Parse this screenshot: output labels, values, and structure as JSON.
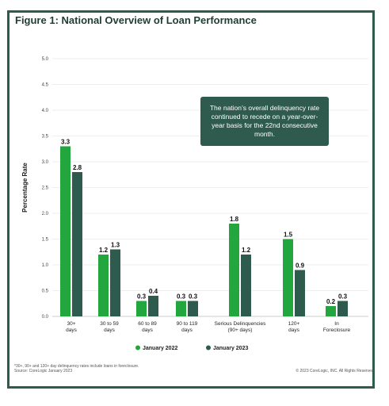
{
  "colors": {
    "jan2022": "#23a63d",
    "jan2023": "#2e5b4e",
    "frame": "#2e5b4e"
  },
  "chart_data": {
    "type": "bar",
    "title": "Figure 1: National Overview of Loan Performance",
    "ylabel": "Percentage Rate",
    "xlabel": "",
    "ylim": [
      0,
      5
    ],
    "yticks": [
      "0.0",
      "0.5",
      "1.0",
      "1.5",
      "2.0",
      "2.5",
      "3.0",
      "3.5",
      "4.0",
      "4.5",
      "5.0"
    ],
    "grid": true,
    "legend_position": "bottom",
    "categories": [
      [
        "30+",
        "days"
      ],
      [
        "30 to 59",
        "days"
      ],
      [
        "60 to 89",
        "days"
      ],
      [
        "90 to 119",
        "days"
      ],
      [
        "Serious Delinquencies",
        "(90+ days)"
      ],
      [
        "120+",
        "days"
      ],
      [
        "In",
        "Foreclosure"
      ]
    ],
    "series": [
      {
        "name": "January 2022",
        "values": [
          3.3,
          1.2,
          0.3,
          0.3,
          1.8,
          1.5,
          0.2
        ]
      },
      {
        "name": "January 2023",
        "values": [
          2.8,
          1.3,
          0.4,
          0.3,
          1.2,
          0.9,
          0.3
        ]
      }
    ],
    "annotation": "The nation’s overall delinquency rate continued to recede on a year-over-year basis for the 22nd consecutive month."
  },
  "footer": {
    "note": "*30+, 90+ and 120+ day delinquency rates include loans in foreclosure.",
    "source": "Source: CoreLogic January 2023",
    "copyright": "© 2023 CoreLogic, INC. All Rights Reserved."
  }
}
